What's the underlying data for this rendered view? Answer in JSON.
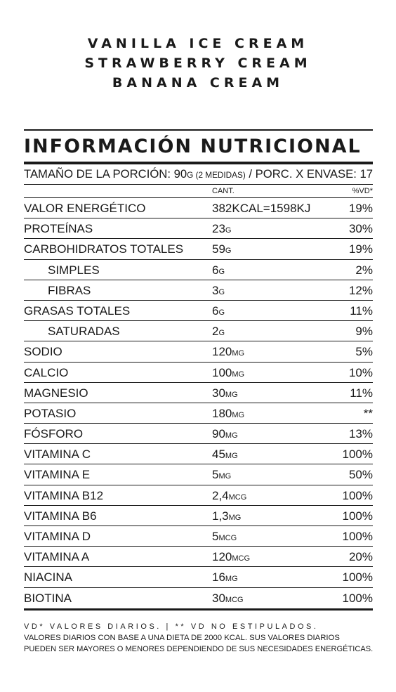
{
  "flavors": [
    "VANILLA ICE CREAM",
    "STRAWBERRY CREAM",
    "BANANA CREAM"
  ],
  "label": {
    "title": "INFORMACIÓN NUTRICIONAL",
    "serving_prefix": "TAMAÑO DE LA PORCIÓN: 90",
    "serving_unit": "G (2 MEDIDAS)",
    "serving_suffix": " / PORC. X ENVASE: 17",
    "col_amount": "CANT.",
    "col_dv": "%VD*"
  },
  "rows": [
    {
      "name": "VALOR ENERGÉTICO",
      "amount": "382KCAL=1598KJ",
      "unit": "",
      "dv": "19%",
      "indent": false
    },
    {
      "name": "PROTEÍNAS",
      "amount": "23",
      "unit": "G",
      "dv": "30%",
      "indent": false
    },
    {
      "name": "CARBOHIDRATOS  TOTALES",
      "amount": "59",
      "unit": "G",
      "dv": "19%",
      "indent": false
    },
    {
      "name": "SIMPLES",
      "amount": "6",
      "unit": "G",
      "dv": "2%",
      "indent": true
    },
    {
      "name": "FIBRAS",
      "amount": "3",
      "unit": "G",
      "dv": "12%",
      "indent": true
    },
    {
      "name": "GRASAS TOTALES",
      "amount": "6",
      "unit": "G",
      "dv": "11%",
      "indent": false
    },
    {
      "name": "SATURADAS",
      "amount": "2",
      "unit": "G",
      "dv": "9%",
      "indent": true
    },
    {
      "name": "SODIO",
      "amount": "120",
      "unit": "MG",
      "dv": "5%",
      "indent": false
    },
    {
      "name": "CALCIO",
      "amount": "100",
      "unit": "MG",
      "dv": "10%",
      "indent": false
    },
    {
      "name": "MAGNESIO",
      "amount": "30",
      "unit": "MG",
      "dv": "11%",
      "indent": false
    },
    {
      "name": "POTASIO",
      "amount": "180",
      "unit": "MG",
      "dv": "**",
      "indent": false
    },
    {
      "name": "FÓSFORO",
      "amount": "90",
      "unit": "MG",
      "dv": "13%",
      "indent": false
    },
    {
      "name": "VITAMINA C",
      "amount": "45",
      "unit": "MG",
      "dv": "100%",
      "indent": false
    },
    {
      "name": "VITAMINA E",
      "amount": "5",
      "unit": "MG",
      "dv": "50%",
      "indent": false
    },
    {
      "name": "VITAMINA B12",
      "amount": "2,4",
      "unit": "MCG",
      "dv": "100%",
      "indent": false
    },
    {
      "name": "VITAMINA B6",
      "amount": "1,3",
      "unit": "MG",
      "dv": "100%",
      "indent": false
    },
    {
      "name": "VITAMINA D",
      "amount": "5",
      "unit": "MCG",
      "dv": "100%",
      "indent": false
    },
    {
      "name": "VITAMINA A",
      "amount": "120",
      "unit": "MCG",
      "dv": "20%",
      "indent": false
    },
    {
      "name": "NIACINA",
      "amount": "16",
      "unit": "MG",
      "dv": "100%",
      "indent": false
    },
    {
      "name": "BIOTINA",
      "amount": "30",
      "unit": "MCG",
      "dv": "100%",
      "indent": false
    }
  ],
  "footer": {
    "line1": "VD* VALORES DIARIOS.  |  ** VD NO ESTIPULADOS.",
    "line2": "VALORES DIARIOS CON BASE A UNA DIETA DE 2000 KCAL. SUS VALORES DIARIOS",
    "line3": "PUEDEN SER MAYORES O MENORES DEPENDIENDO DE SUS NECESIDADES ENERGÉTICAS."
  }
}
